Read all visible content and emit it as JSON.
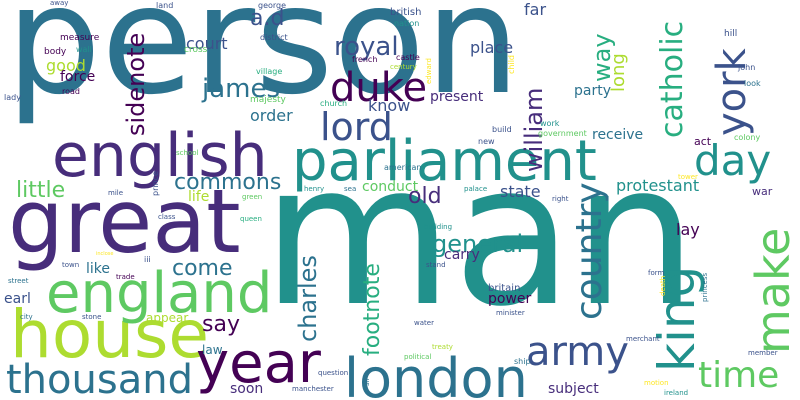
{
  "colors": {
    "background": "#ffffff",
    "palette": [
      "#440154",
      "#472d7b",
      "#3b528b",
      "#2c728e",
      "#21918c",
      "#28ae80",
      "#5ec962",
      "#addc30",
      "#fde725"
    ]
  },
  "words": [
    {
      "text": "person",
      "color": "#2c728e"
    },
    {
      "text": "man",
      "color": "#21918c"
    },
    {
      "text": "great",
      "color": "#472d7b"
    },
    {
      "text": "parliament",
      "color": "#21918c"
    },
    {
      "text": "english",
      "color": "#472d7b"
    },
    {
      "text": "house",
      "color": "#addc30"
    },
    {
      "text": "england",
      "color": "#5ec962"
    },
    {
      "text": "london",
      "color": "#2c728e"
    },
    {
      "text": "year",
      "color": "#440154"
    },
    {
      "text": "thousand",
      "color": "#2c728e"
    },
    {
      "text": "army",
      "color": "#3b528b"
    },
    {
      "text": "make",
      "color": "#5ec962"
    },
    {
      "text": "king",
      "color": "#21918c"
    },
    {
      "text": "country",
      "color": "#2c728e"
    },
    {
      "text": "day",
      "color": "#21918c"
    },
    {
      "text": "time",
      "color": "#5ec962"
    },
    {
      "text": "lord",
      "color": "#3b528b"
    },
    {
      "text": "york",
      "color": "#3b528b"
    },
    {
      "text": "duke",
      "color": "#440154"
    },
    {
      "text": "catholic",
      "color": "#28ae80"
    },
    {
      "text": "royal",
      "color": "#3b528b"
    },
    {
      "text": "james",
      "color": "#2c728e"
    },
    {
      "text": "william",
      "color": "#472d7b"
    },
    {
      "text": "charles",
      "color": "#2c728e"
    },
    {
      "text": "general",
      "color": "#21918c"
    },
    {
      "text": "footnote",
      "color": "#28ae80"
    },
    {
      "text": "sidenote",
      "color": "#440154"
    },
    {
      "text": "commons",
      "color": "#2c728e"
    },
    {
      "text": "come",
      "color": "#2c728e"
    },
    {
      "text": "say",
      "color": "#440154"
    },
    {
      "text": "old",
      "color": "#472d7b"
    },
    {
      "text": "little",
      "color": "#5ec962"
    },
    {
      "text": "way",
      "color": "#28ae80"
    },
    {
      "text": "a.d",
      "color": "#3b528b"
    },
    {
      "text": "long",
      "color": "#addc30"
    },
    {
      "text": "far",
      "color": "#3b528b"
    },
    {
      "text": "place",
      "color": "#3b528b"
    },
    {
      "text": "protestant",
      "color": "#21918c"
    },
    {
      "text": "state",
      "color": "#3b528b"
    },
    {
      "text": "court",
      "color": "#3b528b"
    },
    {
      "text": "good",
      "color": "#addc30"
    },
    {
      "text": "force",
      "color": "#440154"
    },
    {
      "text": "know",
      "color": "#3b528b"
    },
    {
      "text": "order",
      "color": "#2c728e"
    },
    {
      "text": "present",
      "color": "#472d7b"
    },
    {
      "text": "party",
      "color": "#2c728e"
    },
    {
      "text": "receive",
      "color": "#2c728e"
    },
    {
      "text": "conduct",
      "color": "#5ec962"
    },
    {
      "text": "life",
      "color": "#addc30"
    },
    {
      "text": "like",
      "color": "#2c728e"
    },
    {
      "text": "earl",
      "color": "#3b528b"
    },
    {
      "text": "lay",
      "color": "#440154"
    },
    {
      "text": "carry",
      "color": "#472d7b"
    },
    {
      "text": "power",
      "color": "#440154"
    },
    {
      "text": "appear",
      "color": "#addc30"
    },
    {
      "text": "law",
      "color": "#2c728e"
    },
    {
      "text": "soon",
      "color": "#472d7b"
    },
    {
      "text": "subject",
      "color": "#472d7b"
    },
    {
      "text": "britain",
      "color": "#3b528b"
    },
    {
      "text": "act",
      "color": "#440154"
    },
    {
      "text": "war",
      "color": "#472d7b"
    },
    {
      "text": "measure",
      "color": "#440154"
    },
    {
      "text": "body",
      "color": "#440154"
    },
    {
      "text": "wall",
      "color": "#21918c"
    },
    {
      "text": "road",
      "color": "#440154"
    },
    {
      "text": "lady",
      "color": "#3b528b"
    },
    {
      "text": "cross",
      "color": "#5ec962"
    },
    {
      "text": "village",
      "color": "#28ae80"
    },
    {
      "text": "majesty",
      "color": "#5ec962"
    },
    {
      "text": "george",
      "color": "#3b528b"
    },
    {
      "text": "district",
      "color": "#3b528b"
    },
    {
      "text": "british",
      "color": "#3b528b"
    },
    {
      "text": "nation",
      "color": "#21918c"
    },
    {
      "text": "french",
      "color": "#440154"
    },
    {
      "text": "castle",
      "color": "#440154"
    },
    {
      "text": "century",
      "color": "#addc30"
    },
    {
      "text": "edward",
      "color": "#fde725"
    },
    {
      "text": "church",
      "color": "#28ae80"
    },
    {
      "text": "child",
      "color": "#fde725"
    },
    {
      "text": "build",
      "color": "#3b528b"
    },
    {
      "text": "work",
      "color": "#21918c"
    },
    {
      "text": "government",
      "color": "#5ec962"
    },
    {
      "text": "hill",
      "color": "#3b528b"
    },
    {
      "text": "john",
      "color": "#3b528b"
    },
    {
      "text": "look",
      "color": "#2c728e"
    },
    {
      "text": "colony",
      "color": "#5ec962"
    },
    {
      "text": "land",
      "color": "#3b528b"
    },
    {
      "text": "away",
      "color": "#3b528b"
    },
    {
      "text": "american",
      "color": "#2c728e"
    },
    {
      "text": "new",
      "color": "#3b528b"
    },
    {
      "text": "ship",
      "color": "#2c728e"
    },
    {
      "text": "school",
      "color": "#5ec962"
    },
    {
      "text": "prince",
      "color": "#3b528b"
    },
    {
      "text": "henry",
      "color": "#21918c"
    },
    {
      "text": "sea",
      "color": "#2c728e"
    },
    {
      "text": "palace",
      "color": "#21918c"
    },
    {
      "text": "right",
      "color": "#3b528b"
    },
    {
      "text": "tower",
      "color": "#fde725"
    },
    {
      "text": "mile",
      "color": "#3b528b"
    },
    {
      "text": "class",
      "color": "#3b528b"
    },
    {
      "text": "green",
      "color": "#5ec962"
    },
    {
      "text": "queen",
      "color": "#28ae80"
    },
    {
      "text": "building",
      "color": "#21918c"
    },
    {
      "text": "stand",
      "color": "#3b528b"
    },
    {
      "text": "iii",
      "color": "#3b528b"
    },
    {
      "text": "town",
      "color": "#3b528b"
    },
    {
      "text": "trade",
      "color": "#440154"
    },
    {
      "text": "street",
      "color": "#2c728e"
    },
    {
      "text": "stone",
      "color": "#3b528b"
    },
    {
      "text": "city",
      "color": "#2c728e"
    },
    {
      "text": "minister",
      "color": "#3b528b"
    },
    {
      "text": "form",
      "color": "#3b528b"
    },
    {
      "text": "death",
      "color": "#fde725"
    },
    {
      "text": "princess",
      "color": "#2c728e"
    },
    {
      "text": "water",
      "color": "#3b528b"
    },
    {
      "text": "treaty",
      "color": "#addc30"
    },
    {
      "text": "political",
      "color": "#5ec962"
    },
    {
      "text": "merchant",
      "color": "#3b528b"
    },
    {
      "text": "member",
      "color": "#3b528b"
    },
    {
      "text": "question",
      "color": "#3b528b"
    },
    {
      "text": "sir",
      "color": "#2c728e"
    },
    {
      "text": "manchester",
      "color": "#3b528b"
    },
    {
      "text": "motion",
      "color": "#fde725"
    },
    {
      "text": "ireland",
      "color": "#21918c"
    },
    {
      "text": "inclose",
      "color": "#fde725"
    }
  ]
}
